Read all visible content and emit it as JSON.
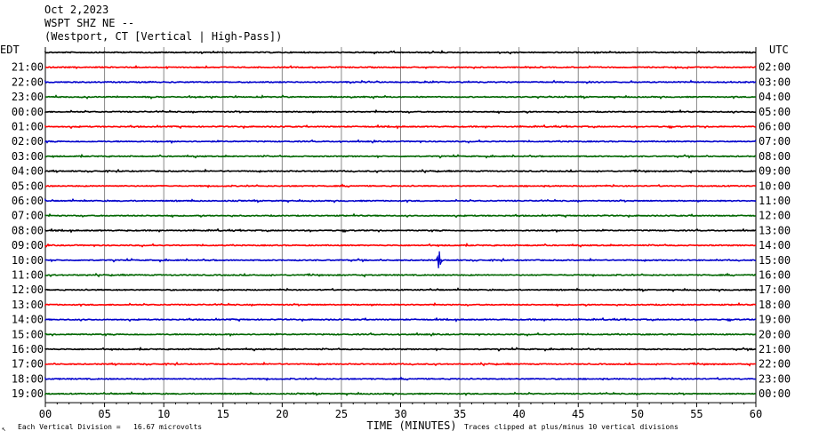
{
  "header": {
    "date": "Oct 2,2023",
    "station": "WSPT SHZ NE --",
    "location": "(Westport, CT [Vertical | High-Pass])"
  },
  "left_tz": "EDT",
  "right_tz": "UTC",
  "footer": {
    "scale_note": "Each Vertical Division =   16.67 microvolts",
    "clip_note": "Traces clipped at plus/minus 10 vertical divisions",
    "corner_mark": "↖"
  },
  "colors": {
    "red": "#ff0000",
    "blue": "#0000cc",
    "green": "#006600",
    "black": "#000000",
    "grid": "#888888"
  },
  "chart_data": {
    "type": "line",
    "title": "WSPT SHZ NE -- (Westport, CT [Vertical | High-Pass])",
    "xlabel": "TIME (MINUTES)",
    "xlim": [
      0,
      60
    ],
    "x_ticks": [
      "00",
      "05",
      "10",
      "15",
      "20",
      "25",
      "30",
      "35",
      "40",
      "45",
      "50",
      "55",
      "60"
    ],
    "rows": [
      {
        "left": "",
        "right": "",
        "color": "black"
      },
      {
        "left": "21:00",
        "right": "02:00",
        "color": "red"
      },
      {
        "left": "22:00",
        "right": "03:00",
        "color": "blue"
      },
      {
        "left": "23:00",
        "right": "04:00",
        "color": "green"
      },
      {
        "left": "00:00",
        "right": "05:00",
        "color": "black"
      },
      {
        "left": "01:00",
        "right": "06:00",
        "color": "red"
      },
      {
        "left": "02:00",
        "right": "07:00",
        "color": "blue"
      },
      {
        "left": "03:00",
        "right": "08:00",
        "color": "green"
      },
      {
        "left": "04:00",
        "right": "09:00",
        "color": "black"
      },
      {
        "left": "05:00",
        "right": "10:00",
        "color": "red"
      },
      {
        "left": "06:00",
        "right": "11:00",
        "color": "blue"
      },
      {
        "left": "07:00",
        "right": "12:00",
        "color": "green"
      },
      {
        "left": "08:00",
        "right": "13:00",
        "color": "black"
      },
      {
        "left": "09:00",
        "right": "14:00",
        "color": "red"
      },
      {
        "left": "10:00",
        "right": "15:00",
        "color": "blue"
      },
      {
        "left": "11:00",
        "right": "16:00",
        "color": "green"
      },
      {
        "left": "12:00",
        "right": "17:00",
        "color": "black"
      },
      {
        "left": "13:00",
        "right": "18:00",
        "color": "red"
      },
      {
        "left": "14:00",
        "right": "19:00",
        "color": "blue"
      },
      {
        "left": "15:00",
        "right": "20:00",
        "color": "green"
      },
      {
        "left": "16:00",
        "right": "21:00",
        "color": "black"
      },
      {
        "left": "17:00",
        "right": "22:00",
        "color": "red"
      },
      {
        "left": "18:00",
        "right": "23:00",
        "color": "blue"
      },
      {
        "left": "19:00",
        "right": "00:00",
        "color": "green"
      }
    ],
    "events": [
      {
        "row_left": "10:00",
        "minute": 33.2,
        "note": "spike"
      }
    ],
    "grid": true
  }
}
